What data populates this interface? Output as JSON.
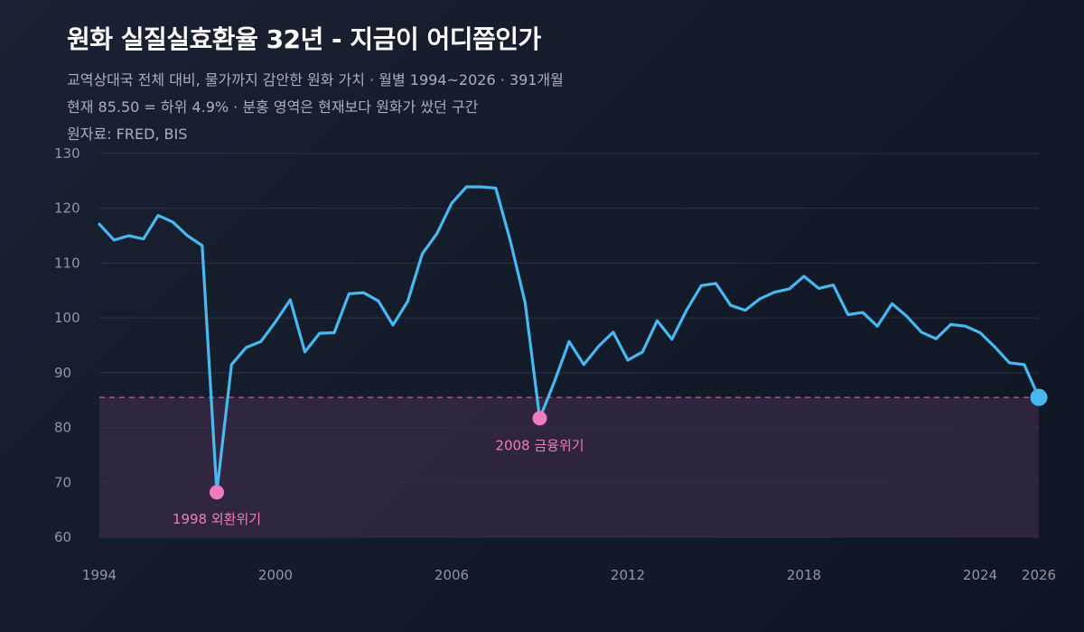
{
  "header": {
    "title": "원화 실질실효환율 32년 - 지금이 어디쯤인가",
    "subtitle_line1": "교역상대국 전체 대비, 물가까지 감안한 원화 가치 · 월별 1994~2026 · 391개월",
    "subtitle_line2": "현재 85.50 = 하위 4.9% · 분홍 영역은 현재보다 원화가 쌌던 구간",
    "source": "원자료: FRED, BIS"
  },
  "colors": {
    "line": "#4ab8f0",
    "annotation": "#f07cc0",
    "current_marker": "#4ab8f0",
    "band_fill": "#3a2a45",
    "grid": "#2a3344",
    "axis_text": "#8e97a8"
  },
  "chart_data": {
    "type": "line",
    "title": "원화 실질실효환율 32년 - 지금이 어디쯤인가",
    "xlabel": "",
    "ylabel": "",
    "xlim": [
      1994,
      2026
    ],
    "ylim": [
      60,
      130
    ],
    "x_ticks": [
      1994,
      2000,
      2006,
      2012,
      2018,
      2024,
      2026
    ],
    "y_ticks": [
      60,
      70,
      80,
      90,
      100,
      110,
      120,
      130
    ],
    "grid": true,
    "reference_line": {
      "value": 85.5,
      "style": "dashed"
    },
    "shaded_region": {
      "from": 60,
      "to": 85.5
    },
    "series": [
      {
        "x": [
          1994.0,
          1994.5,
          1995.0,
          1995.5,
          1996.0,
          1996.5,
          1997.0,
          1997.5,
          1998.0,
          1998.5,
          1999.0,
          1999.5,
          2000.0,
          2000.5,
          2001.0,
          2001.5,
          2002.0,
          2002.5,
          2003.0,
          2003.5,
          2004.0,
          2004.5,
          2005.0,
          2005.5,
          2006.0,
          2006.5,
          2007.0,
          2007.5,
          2008.0,
          2008.5,
          2009.0,
          2009.5,
          2010.0,
          2010.5,
          2011.0,
          2011.5,
          2012.0,
          2012.5,
          2013.0,
          2013.5,
          2014.0,
          2014.5,
          2015.0,
          2015.5,
          2016.0,
          2016.5,
          2017.0,
          2017.5,
          2018.0,
          2018.5,
          2019.0,
          2019.5,
          2020.0,
          2020.5,
          2021.0,
          2021.5,
          2022.0,
          2022.5,
          2023.0,
          2023.5,
          2024.0,
          2024.5,
          2025.0,
          2025.5,
          2026.0
        ],
        "values": [
          117.1,
          114.2,
          115.0,
          114.4,
          118.7,
          117.5,
          115.0,
          113.2,
          68.2,
          91.5,
          94.6,
          95.7,
          99.3,
          103.3,
          93.8,
          97.2,
          97.3,
          104.4,
          104.6,
          103.1,
          98.7,
          103.0,
          111.7,
          115.4,
          120.9,
          123.9,
          123.9,
          123.7,
          114.0,
          102.8,
          81.7,
          88.4,
          95.7,
          91.5,
          94.8,
          97.4,
          92.3,
          93.8,
          99.5,
          96.1,
          101.4,
          105.9,
          106.3,
          102.3,
          101.4,
          103.5,
          104.7,
          105.3,
          107.6,
          105.4,
          106.0,
          100.6,
          101.0,
          98.5,
          102.6,
          100.3,
          97.4,
          96.2,
          98.8,
          98.5,
          97.3,
          94.7,
          91.8,
          91.5,
          85.5
        ]
      }
    ],
    "annotations": [
      {
        "label": "1998 외환위기",
        "x": 1998.0,
        "y": 68.2
      },
      {
        "label": "2008 금융위기",
        "x": 2009.0,
        "y": 81.7
      }
    ],
    "current_point": {
      "x": 2026.0,
      "y": 85.5
    }
  }
}
